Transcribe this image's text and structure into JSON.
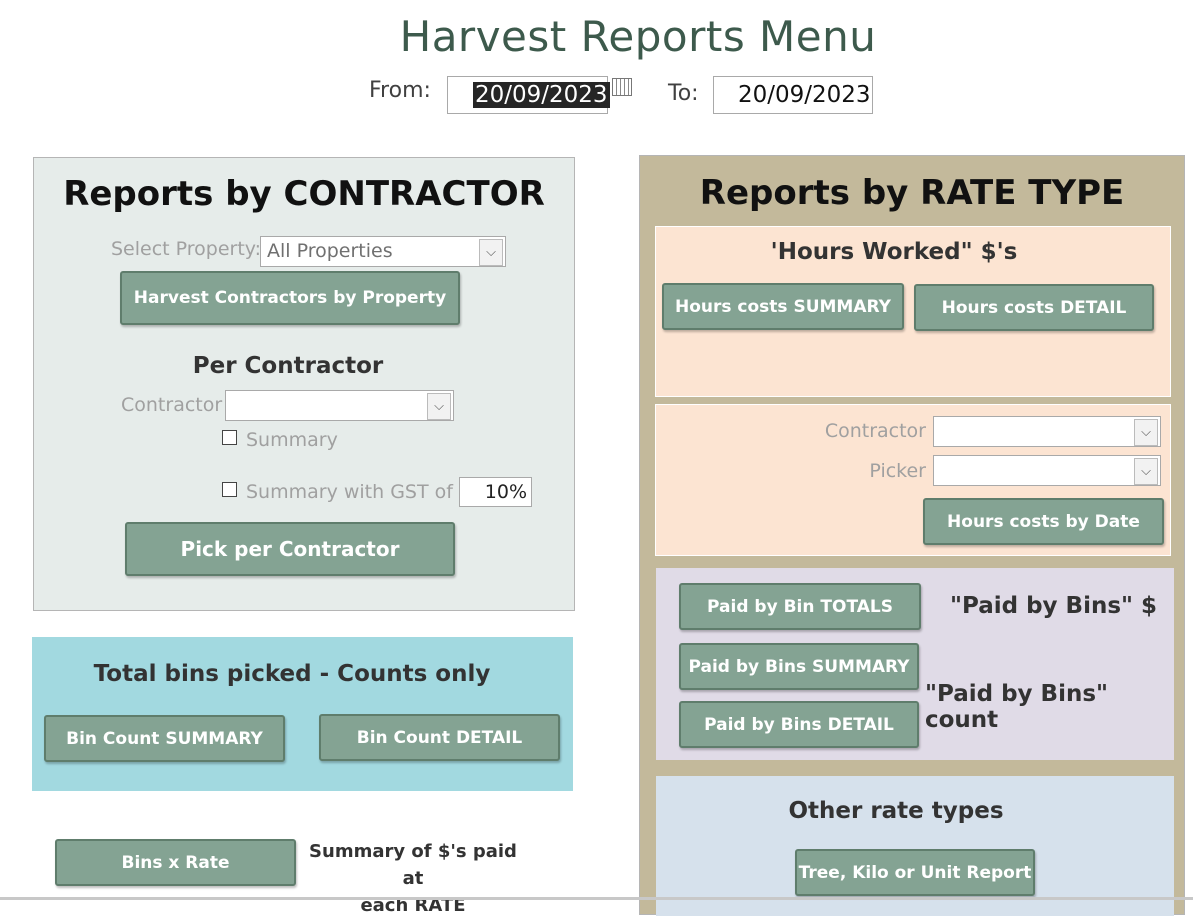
{
  "header": {
    "title": "Harvest Reports Menu",
    "from_label": "From:",
    "from_value": "20/09/2023",
    "to_label": "To:",
    "to_value": "20/09/2023"
  },
  "contractor_panel": {
    "heading": "Reports by CONTRACTOR",
    "select_property_label": "Select Property:",
    "select_property_value": "All Properties",
    "harvest_button": "Harvest Contractors by Property",
    "per_contractor_heading": "Per Contractor",
    "contractor_label": "Contractor",
    "summary_label": "Summary",
    "gst_label": "Summary with GST of",
    "gst_value": "10%",
    "pick_button": "Pick per Contractor"
  },
  "bins_panel": {
    "heading": "Total bins picked - Counts only",
    "summary_button": "Bin Count SUMMARY",
    "detail_button": "Bin Count DETAIL"
  },
  "bins_rate": {
    "button": "Bins x Rate",
    "caption_line1": "Summary of $'s paid at",
    "caption_line2": "each RATE"
  },
  "rate_panel": {
    "heading": "Reports by RATE TYPE",
    "hours_heading": "'Hours Worked\"  $'s",
    "hours_summary_button": "Hours costs SUMMARY",
    "hours_detail_button": "Hours costs DETAIL",
    "contractor_label": "Contractor",
    "picker_label": "Picker",
    "hours_by_date_button": "Hours costs by Date",
    "bin_totals_button": "Paid by Bin TOTALS",
    "paid_bins_dollar": "\"Paid by Bins\" $",
    "bins_summary_button": "Paid by Bins SUMMARY",
    "paid_bins_count": "\"Paid by Bins\"  count",
    "bins_detail_button": "Paid by Bins  DETAIL",
    "other_heading": "Other rate types",
    "other_button": "Tree, Kilo or Unit Report"
  },
  "colors": {
    "button": "#84a393",
    "contractor_bg": "#e6ecea",
    "bins_bg": "#a2d9e0",
    "rate_bg": "#c3b99b",
    "hours_bg": "#fce4d2",
    "paid_bins_bg": "#e0dbe7",
    "other_bg": "#d6e1ec"
  }
}
